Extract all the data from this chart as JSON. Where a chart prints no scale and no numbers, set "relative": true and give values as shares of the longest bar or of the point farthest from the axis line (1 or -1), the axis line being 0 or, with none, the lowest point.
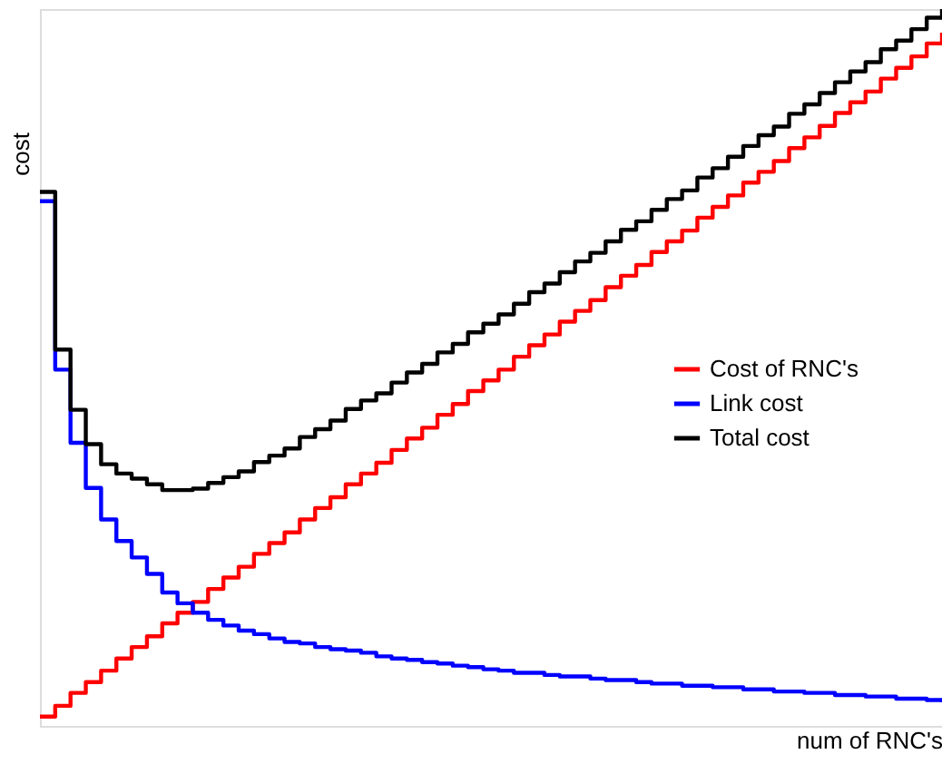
{
  "chart_data": {
    "type": "step",
    "relative": true,
    "xlabel": "num of RNC's",
    "ylabel": "cost",
    "legend": "right",
    "categories": [
      null,
      null,
      null,
      null,
      null,
      null,
      null,
      null,
      null,
      null,
      null,
      null,
      null,
      null,
      null,
      null,
      null,
      null,
      null,
      null,
      null,
      null,
      null,
      null,
      null,
      null,
      null,
      null,
      null,
      null,
      null,
      null,
      null,
      null,
      null,
      null,
      null,
      null,
      null,
      null,
      null,
      null,
      null,
      null,
      null,
      null,
      null,
      null,
      null,
      null,
      null,
      null,
      null,
      null,
      null,
      null,
      null,
      null,
      null,
      null
    ],
    "series": [
      {
        "name": "Cost of RNC's",
        "color": "#ff0000",
        "values": [
          0.013,
          0.028,
          0.046,
          0.061,
          0.077,
          0.094,
          0.11,
          0.125,
          0.143,
          0.158,
          0.173,
          0.191,
          0.207,
          0.222,
          0.24,
          0.255,
          0.27,
          0.288,
          0.304,
          0.319,
          0.337,
          0.352,
          0.367,
          0.385,
          0.401,
          0.416,
          0.434,
          0.449,
          0.467,
          0.482,
          0.497,
          0.515,
          0.531,
          0.546,
          0.564,
          0.579,
          0.594,
          0.612,
          0.628,
          0.643,
          0.661,
          0.676,
          0.691,
          0.709,
          0.724,
          0.74,
          0.758,
          0.773,
          0.788,
          0.806,
          0.821,
          0.837,
          0.855,
          0.87,
          0.885,
          0.903,
          0.918,
          0.934,
          0.952,
          0.967
        ]
      },
      {
        "name": "Link cost",
        "color": "#0000ff",
        "values": [
          0.732,
          0.497,
          0.395,
          0.332,
          0.288,
          0.258,
          0.235,
          0.212,
          0.186,
          0.171,
          0.158,
          0.148,
          0.14,
          0.133,
          0.128,
          0.122,
          0.117,
          0.115,
          0.11,
          0.107,
          0.105,
          0.102,
          0.097,
          0.094,
          0.092,
          0.089,
          0.087,
          0.084,
          0.082,
          0.079,
          0.077,
          0.074,
          0.074,
          0.071,
          0.069,
          0.069,
          0.066,
          0.064,
          0.064,
          0.061,
          0.059,
          0.059,
          0.056,
          0.056,
          0.054,
          0.054,
          0.051,
          0.051,
          0.048,
          0.048,
          0.046,
          0.046,
          0.043,
          0.043,
          0.041,
          0.041,
          0.038,
          0.038,
          0.036,
          0.033
        ]
      },
      {
        "name": "Total cost",
        "color": "#000000",
        "values": [
          0.745,
          0.525,
          0.441,
          0.393,
          0.365,
          0.352,
          0.345,
          0.337,
          0.329,
          0.329,
          0.331,
          0.339,
          0.347,
          0.355,
          0.368,
          0.377,
          0.387,
          0.403,
          0.414,
          0.426,
          0.442,
          0.454,
          0.464,
          0.479,
          0.493,
          0.505,
          0.521,
          0.533,
          0.549,
          0.561,
          0.574,
          0.589,
          0.605,
          0.617,
          0.633,
          0.648,
          0.66,
          0.676,
          0.692,
          0.704,
          0.72,
          0.735,
          0.747,
          0.765,
          0.778,
          0.794,
          0.809,
          0.824,
          0.836,
          0.854,
          0.867,
          0.883,
          0.898,
          0.913,
          0.926,
          0.944,
          0.956,
          0.972,
          0.988,
          1.0
        ]
      }
    ]
  }
}
